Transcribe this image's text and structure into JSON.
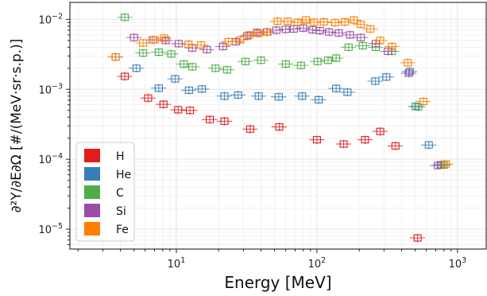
{
  "chart_data": {
    "type": "scatter",
    "xlabel": "Energy [MeV]",
    "ylabel": "∂²Y/∂E∂Ω [#/(MeV·sr·s.p.)]",
    "xscale": "log",
    "yscale": "log",
    "xlim": [
      1.75,
      1600
    ],
    "ylim": [
      5.2e-06,
      0.0175
    ],
    "grid": true,
    "legend_position": "bottom-left",
    "x_ticks": [
      {
        "base": "10",
        "exp": "1"
      },
      {
        "base": "10",
        "exp": "2"
      },
      {
        "base": "10",
        "exp": "3"
      }
    ],
    "y_ticks": [
      {
        "base": "10",
        "exp": "−5"
      },
      {
        "base": "10",
        "exp": "−4"
      },
      {
        "base": "10",
        "exp": "−3"
      },
      {
        "base": "10",
        "exp": "−2"
      }
    ],
    "series": [
      {
        "name": "H",
        "color": "#e41a1c",
        "points": [
          [
            4.3,
            0.00153
          ],
          [
            6.3,
            0.00075
          ],
          [
            8.1,
            0.00061
          ],
          [
            10.3,
            0.00051
          ],
          [
            12.5,
            0.0005
          ],
          [
            17.3,
            0.00037
          ],
          [
            22.0,
            0.00035
          ],
          [
            33.5,
            0.00027
          ],
          [
            54.0,
            0.00029
          ],
          [
            100.0,
            0.00019
          ],
          [
            155.0,
            0.000165
          ],
          [
            220.0,
            0.00019
          ],
          [
            282.0,
            0.00025
          ],
          [
            362.0,
            0.000155
          ],
          [
            520.0,
            7.5e-06
          ]
        ]
      },
      {
        "name": "He",
        "color": "#377eb8",
        "points": [
          [
            3.7,
            0.0029
          ],
          [
            5.2,
            0.002
          ],
          [
            7.5,
            0.00104
          ],
          [
            9.8,
            0.00141
          ],
          [
            12.3,
            0.00097
          ],
          [
            15.2,
            0.00101
          ],
          [
            22.0,
            0.0008
          ],
          [
            27.5,
            0.00083
          ],
          [
            38.5,
            0.0008
          ],
          [
            53.5,
            0.00078
          ],
          [
            78.5,
            0.0008
          ],
          [
            103.0,
            0.00071
          ],
          [
            137.0,
            0.00103
          ],
          [
            165.0,
            0.00091
          ],
          [
            260.0,
            0.00131
          ],
          [
            312.0,
            0.0015
          ],
          [
            457.0,
            0.0018
          ],
          [
            505.0,
            0.00057
          ],
          [
            625.0,
            0.00016
          ],
          [
            760.0,
            8.35e-05
          ]
        ]
      },
      {
        "name": "C",
        "color": "#4daf4a",
        "points": [
          [
            4.3,
            0.0107
          ],
          [
            5.8,
            0.0033
          ],
          [
            7.5,
            0.0034
          ],
          [
            9.2,
            0.0032
          ],
          [
            11.3,
            0.0023
          ],
          [
            13.0,
            0.0021
          ],
          [
            19.0,
            0.002
          ],
          [
            23.0,
            0.0019
          ],
          [
            31.0,
            0.0025
          ],
          [
            40.0,
            0.0026
          ],
          [
            60.0,
            0.0023
          ],
          [
            77.0,
            0.0022
          ],
          [
            101.0,
            0.0025
          ],
          [
            120.0,
            0.0026
          ],
          [
            137.0,
            0.0028
          ],
          [
            168.0,
            0.004
          ],
          [
            212.0,
            0.0042
          ],
          [
            262.0,
            0.004
          ],
          [
            342.0,
            0.0035
          ],
          [
            525.0,
            0.00056
          ],
          [
            800.0,
            8.25e-05
          ]
        ]
      },
      {
        "name": "Si",
        "color": "#984ea3",
        "points": [
          [
            5.0,
            0.0055
          ],
          [
            6.8,
            0.0051
          ],
          [
            8.4,
            0.005
          ],
          [
            10.4,
            0.0045
          ],
          [
            13.0,
            0.0039
          ],
          [
            16.5,
            0.0037
          ],
          [
            21.5,
            0.0041
          ],
          [
            26.5,
            0.0048
          ],
          [
            32.0,
            0.0058
          ],
          [
            37.5,
            0.0065
          ],
          [
            44.0,
            0.0066
          ],
          [
            51.5,
            0.007
          ],
          [
            60.0,
            0.0072
          ],
          [
            68.5,
            0.0073
          ],
          [
            80.0,
            0.0075
          ],
          [
            93.0,
            0.0071
          ],
          [
            105.0,
            0.0069
          ],
          [
            122.0,
            0.0066
          ],
          [
            143.0,
            0.0064
          ],
          [
            172.0,
            0.006
          ],
          [
            205.0,
            0.0055
          ],
          [
            262.0,
            0.0045
          ],
          [
            320.0,
            0.0035
          ],
          [
            450.0,
            0.0017
          ],
          [
            725.0,
            8.15e-05
          ]
        ]
      },
      {
        "name": "Fe",
        "color": "#ff7f00",
        "points": [
          [
            3.7,
            0.0029
          ],
          [
            5.8,
            0.0046
          ],
          [
            7.0,
            0.0051
          ],
          [
            8.2,
            0.0054
          ],
          [
            12.2,
            0.0044
          ],
          [
            15.0,
            0.0043
          ],
          [
            23.5,
            0.0048
          ],
          [
            28.5,
            0.0051
          ],
          [
            33.0,
            0.006
          ],
          [
            38.5,
            0.0063
          ],
          [
            44.5,
            0.0066
          ],
          [
            52.5,
            0.0094
          ],
          [
            62.0,
            0.0094
          ],
          [
            73.0,
            0.0091
          ],
          [
            83.5,
            0.0098
          ],
          [
            95.5,
            0.0091
          ],
          [
            112.0,
            0.0092
          ],
          [
            135.0,
            0.009
          ],
          [
            158.0,
            0.0092
          ],
          [
            183.0,
            0.0098
          ],
          [
            205.0,
            0.0085
          ],
          [
            240.0,
            0.0073
          ],
          [
            282.0,
            0.005
          ],
          [
            342.0,
            0.0041
          ],
          [
            443.0,
            0.0024
          ],
          [
            572.0,
            0.00067
          ],
          [
            825.0,
            8.55e-05
          ]
        ]
      }
    ]
  },
  "legend": {
    "items": [
      {
        "label": "H",
        "color": "#e41a1c"
      },
      {
        "label": "He",
        "color": "#377eb8"
      },
      {
        "label": "C",
        "color": "#4daf4a"
      },
      {
        "label": "Si",
        "color": "#984ea3"
      },
      {
        "label": "Fe",
        "color": "#ff7f00"
      }
    ]
  }
}
